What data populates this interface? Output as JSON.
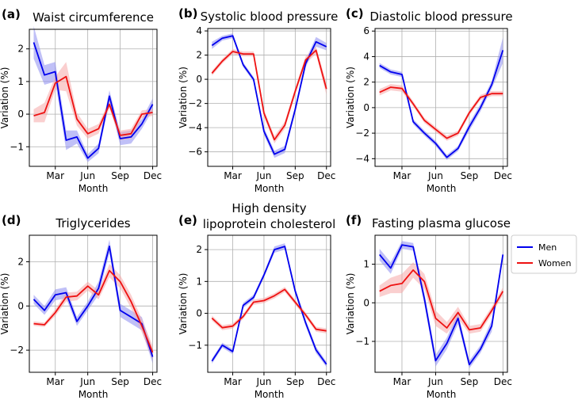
{
  "figure": {
    "legend": {
      "entries": [
        {
          "name": "Men",
          "color": "#0000ee"
        },
        {
          "name": "Women",
          "color": "#ee1111"
        }
      ],
      "placement": "right-middle"
    }
  },
  "chart_data": [
    {
      "type": "line",
      "panel": "(a)",
      "title": "Waist circumference",
      "xlabel": "Month",
      "ylabel": "Variation (%)",
      "x": [
        1,
        2,
        3,
        4,
        5,
        6,
        7,
        8,
        9,
        10,
        11,
        12
      ],
      "xticks": [
        3,
        6,
        9,
        12
      ],
      "xticklabels": [
        "Mar",
        "Jun",
        "Sep",
        "Dec"
      ],
      "ylim": [
        -1.6,
        2.6
      ],
      "yticks": [
        -1,
        0,
        1,
        2
      ],
      "yticklabels": [
        "−1",
        "0",
        "1",
        "2"
      ],
      "series": [
        {
          "name": "Men",
          "color": "#0000ee",
          "band_color": "#8c8cf0",
          "values": [
            2.2,
            1.2,
            1.3,
            -0.8,
            -0.7,
            -1.35,
            -1.05,
            0.55,
            -0.75,
            -0.7,
            -0.3,
            0.3
          ],
          "err": [
            0.5,
            0.3,
            0.3,
            0.3,
            0.2,
            0.12,
            0.15,
            0.18,
            0.2,
            0.2,
            0.15,
            0.18
          ]
        },
        {
          "name": "Women",
          "color": "#ee1111",
          "band_color": "#f6a8a8",
          "values": [
            -0.05,
            0.05,
            0.95,
            1.15,
            -0.15,
            -0.6,
            -0.45,
            0.3,
            -0.65,
            -0.6,
            0.0,
            0.05
          ],
          "err": [
            0.2,
            0.3,
            0.2,
            0.45,
            0.2,
            0.15,
            0.15,
            0.12,
            0.15,
            0.15,
            0.12,
            0.1
          ]
        }
      ]
    },
    {
      "type": "line",
      "panel": "(b)",
      "title": "Systolic blood pressure",
      "xlabel": "Month",
      "ylabel": "Variation (%)",
      "x": [
        1,
        2,
        3,
        4,
        5,
        6,
        7,
        8,
        9,
        10,
        11,
        12
      ],
      "xticks": [
        3,
        6,
        9,
        12
      ],
      "xticklabels": [
        "Mar",
        "Jun",
        "Sep",
        "Dec"
      ],
      "ylim": [
        -7.2,
        4.2
      ],
      "yticks": [
        -6,
        -4,
        -2,
        0,
        2,
        4
      ],
      "yticklabels": [
        "−6",
        "−4",
        "−2",
        "0",
        "2",
        "4"
      ],
      "series": [
        {
          "name": "Men",
          "color": "#0000ee",
          "band_color": "#8c8cf0",
          "values": [
            2.8,
            3.4,
            3.6,
            1.2,
            0.0,
            -4.3,
            -6.2,
            -5.8,
            -2.5,
            1.3,
            3.1,
            2.7
          ],
          "err": [
            0.3,
            0.2,
            0.2,
            0.2,
            0.2,
            0.3,
            0.3,
            0.3,
            0.3,
            0.3,
            0.4,
            0.3
          ]
        },
        {
          "name": "Women",
          "color": "#ee1111",
          "band_color": "#f6a8a8",
          "values": [
            0.5,
            1.5,
            2.3,
            2.1,
            2.1,
            -2.8,
            -5.0,
            -3.8,
            -1.0,
            1.6,
            2.4,
            -0.8
          ],
          "err": [
            0.2,
            0.2,
            0.2,
            0.2,
            0.2,
            0.3,
            0.3,
            0.3,
            0.3,
            0.3,
            0.3,
            0.5
          ]
        }
      ]
    },
    {
      "type": "line",
      "panel": "(c)",
      "title": "Diastolic blood pressure",
      "xlabel": "Month",
      "ylabel": "Variation (%)",
      "x": [
        1,
        2,
        3,
        4,
        5,
        6,
        7,
        8,
        9,
        10,
        11,
        12
      ],
      "xticks": [
        3,
        6,
        9,
        12
      ],
      "xticklabels": [
        "Mar",
        "Jun",
        "Sep",
        "Dec"
      ],
      "ylim": [
        -4.6,
        6.2
      ],
      "yticks": [
        -4,
        -2,
        0,
        2,
        4,
        6
      ],
      "yticklabels": [
        "−4",
        "−2",
        "0",
        "2",
        "4",
        "6"
      ],
      "series": [
        {
          "name": "Men",
          "color": "#0000ee",
          "band_color": "#8c8cf0",
          "values": [
            3.3,
            2.8,
            2.6,
            -1.1,
            -2.0,
            -2.8,
            -3.9,
            -3.2,
            -1.5,
            0.0,
            1.8,
            4.5
          ],
          "err": [
            0.2,
            0.2,
            0.2,
            0.2,
            0.2,
            0.2,
            0.2,
            0.2,
            0.3,
            0.3,
            0.3,
            1.0
          ]
        },
        {
          "name": "Women",
          "color": "#ee1111",
          "band_color": "#f6a8a8",
          "values": [
            1.2,
            1.6,
            1.5,
            0.3,
            -1.0,
            -1.7,
            -2.4,
            -2.0,
            -0.4,
            0.8,
            1.1,
            1.1
          ],
          "err": [
            0.25,
            0.25,
            0.25,
            0.2,
            0.2,
            0.2,
            0.2,
            0.2,
            0.2,
            0.2,
            0.2,
            0.2
          ]
        }
      ]
    },
    {
      "type": "line",
      "panel": "(d)",
      "title": "Triglycerides",
      "xlabel": "Month",
      "ylabel": "Variation (%)",
      "x": [
        1,
        2,
        3,
        4,
        5,
        6,
        7,
        8,
        9,
        10,
        11,
        12
      ],
      "xticks": [
        3,
        6,
        9,
        12
      ],
      "xticklabels": [
        "Mar",
        "Jun",
        "Sep",
        "Dec"
      ],
      "ylim": [
        -3.0,
        3.2
      ],
      "yticks": [
        -2,
        0,
        2
      ],
      "yticklabels": [
        "−2",
        "0",
        "2"
      ],
      "series": [
        {
          "name": "Men",
          "color": "#0000ee",
          "band_color": "#8c8cf0",
          "values": [
            0.3,
            -0.2,
            0.5,
            0.6,
            -0.7,
            0.0,
            0.8,
            2.7,
            -0.2,
            -0.5,
            -0.8,
            -2.3
          ],
          "err": [
            0.2,
            0.2,
            0.25,
            0.25,
            0.2,
            0.2,
            0.3,
            0.3,
            0.3,
            0.3,
            0.3,
            0.3
          ]
        },
        {
          "name": "Women",
          "color": "#ee1111",
          "band_color": "#f6a8a8",
          "values": [
            -0.8,
            -0.85,
            -0.3,
            0.4,
            0.45,
            0.9,
            0.5,
            1.6,
            1.1,
            0.2,
            -0.9,
            -2.1
          ],
          "err": [
            0.1,
            0.1,
            0.15,
            0.2,
            0.2,
            0.2,
            0.2,
            0.3,
            0.3,
            0.3,
            0.3,
            0.3
          ]
        }
      ]
    },
    {
      "type": "line",
      "panel": "(e)",
      "title": "High density",
      "title2": "lipoprotein cholesterol",
      "xlabel": "Month",
      "ylabel": "Variation (%)",
      "x": [
        1,
        2,
        3,
        4,
        5,
        6,
        7,
        8,
        9,
        10,
        11,
        12
      ],
      "xticks": [
        3,
        6,
        9,
        12
      ],
      "xticklabels": [
        "Mar",
        "Jun",
        "Sep",
        "Dec"
      ],
      "ylim": [
        -1.85,
        2.45
      ],
      "yticks": [
        -1,
        0,
        1,
        2
      ],
      "yticklabels": [
        "−1",
        "0",
        "1",
        "2"
      ],
      "series": [
        {
          "name": "Men",
          "color": "#0000ee",
          "band_color": "#8c8cf0",
          "values": [
            -1.5,
            -1.0,
            -1.2,
            0.25,
            0.5,
            1.2,
            2.0,
            2.1,
            0.7,
            -0.3,
            -1.15,
            -1.6
          ],
          "err": [
            0.08,
            0.08,
            0.08,
            0.08,
            0.08,
            0.08,
            0.1,
            0.1,
            0.1,
            0.1,
            0.1,
            0.08
          ]
        },
        {
          "name": "Women",
          "color": "#ee1111",
          "band_color": "#f6a8a8",
          "values": [
            -0.15,
            -0.45,
            -0.4,
            -0.1,
            0.35,
            0.4,
            0.55,
            0.75,
            0.35,
            -0.05,
            -0.5,
            -0.55
          ],
          "err": [
            0.08,
            0.08,
            0.08,
            0.08,
            0.08,
            0.08,
            0.08,
            0.08,
            0.08,
            0.08,
            0.08,
            0.08
          ]
        }
      ]
    },
    {
      "type": "line",
      "panel": "(f)",
      "title": "Fasting plasma glucose",
      "xlabel": "Month",
      "ylabel": "Variation (%)",
      "x": [
        1,
        2,
        3,
        4,
        5,
        6,
        7,
        8,
        9,
        10,
        11,
        12
      ],
      "xticks": [
        3,
        6,
        9,
        12
      ],
      "xticklabels": [
        "Mar",
        "Jun",
        "Sep",
        "Dec"
      ],
      "ylim": [
        -1.8,
        1.75
      ],
      "yticks": [
        -1,
        0,
        1
      ],
      "yticklabels": [
        "−1",
        "0",
        "1"
      ],
      "series": [
        {
          "name": "Men",
          "color": "#0000ee",
          "band_color": "#8c8cf0",
          "values": [
            1.25,
            0.9,
            1.5,
            1.45,
            0.1,
            -1.5,
            -1.05,
            -0.4,
            -1.6,
            -1.2,
            -0.6,
            1.25
          ],
          "err": [
            0.15,
            0.15,
            0.1,
            0.1,
            0.15,
            0.15,
            0.15,
            0.15,
            0.1,
            0.1,
            0.15,
            0.1
          ]
        },
        {
          "name": "Women",
          "color": "#ee1111",
          "band_color": "#f6a8a8",
          "values": [
            0.3,
            0.45,
            0.5,
            0.85,
            0.55,
            -0.4,
            -0.65,
            -0.25,
            -0.7,
            -0.65,
            -0.2,
            0.3
          ],
          "err": [
            0.15,
            0.2,
            0.25,
            0.2,
            0.2,
            0.2,
            0.15,
            0.15,
            0.1,
            0.1,
            0.1,
            0.1
          ]
        }
      ]
    }
  ]
}
